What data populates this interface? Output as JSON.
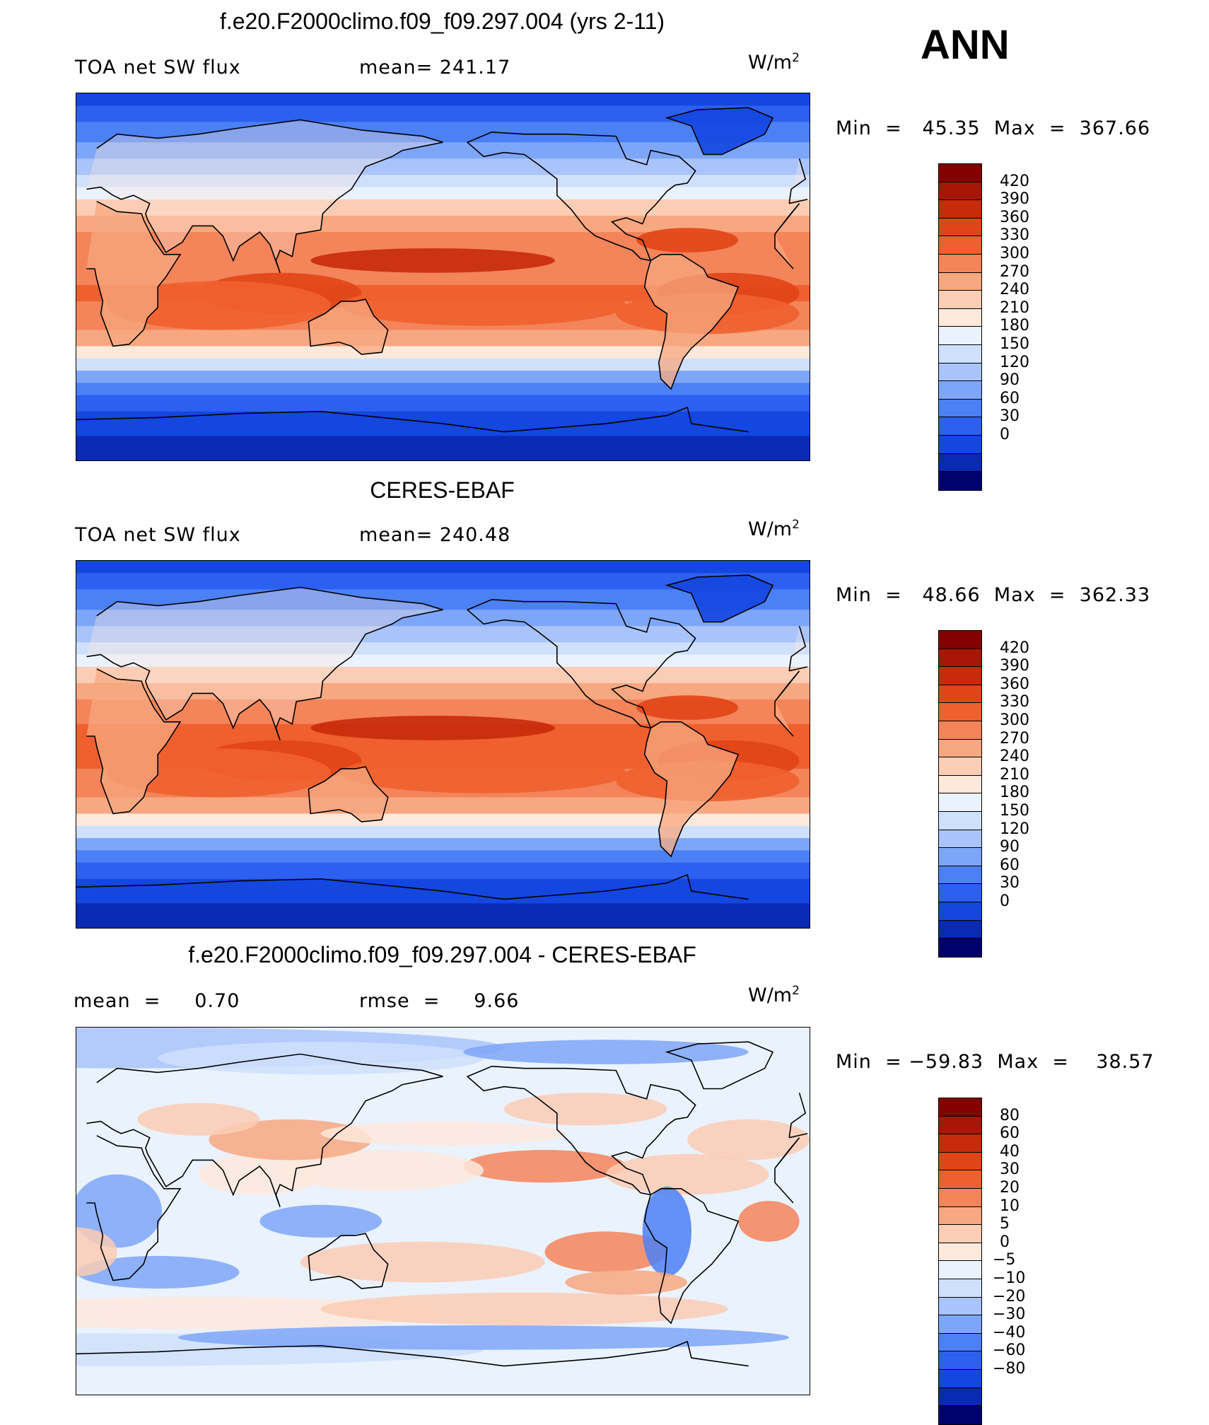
{
  "header": {
    "season": "ANN"
  },
  "colors": {
    "abs_scale": [
      "#00006b",
      "#0a2ab4",
      "#1446e0",
      "#2d60f0",
      "#4c80f5",
      "#7ea6f8",
      "#a9c4fa",
      "#cfe0fc",
      "#eaf2fe",
      "#fde9dc",
      "#fbcdb4",
      "#f7a880",
      "#f4845a",
      "#f0602f",
      "#e14416",
      "#c82a0a",
      "#a81606",
      "#820000"
    ],
    "diff_scale": [
      "#00006b",
      "#0a2ab4",
      "#1446e0",
      "#2d60f0",
      "#4c80f5",
      "#7ea6f8",
      "#a9c4fa",
      "#cfe0fc",
      "#eaf2fe",
      "#fde9dc",
      "#fbcdb4",
      "#f7a880",
      "#f4845a",
      "#f0602f",
      "#e14416",
      "#c82a0a",
      "#a81606",
      "#820000"
    ]
  },
  "panels": [
    {
      "title": "f.e20.F2000climo.f09_f09.297.004 (yrs 2-11)",
      "left_label": "TOA net SW flux",
      "stat_label": "mean= 241.17",
      "units_base": "W/m",
      "units_exp": "2",
      "minmax": "Min  =   45.35  Max  =  367.66",
      "colorbar_ticks": [
        "420",
        "390",
        "360",
        "330",
        "300",
        "270",
        "240",
        "210",
        "180",
        "150",
        "120",
        "90",
        "60",
        "30",
        "0"
      ],
      "map_kind": "model"
    },
    {
      "title": "CERES-EBAF",
      "left_label": "TOA net SW flux",
      "stat_label": "mean= 240.48",
      "units_base": "W/m",
      "units_exp": "2",
      "minmax": "Min  =   48.66  Max  =  362.33",
      "colorbar_ticks": [
        "420",
        "390",
        "360",
        "330",
        "300",
        "270",
        "240",
        "210",
        "180",
        "150",
        "120",
        "90",
        "60",
        "30",
        "0"
      ],
      "map_kind": "obs"
    },
    {
      "title": "f.e20.F2000climo.f09_f09.297.004 - CERES-EBAF",
      "left_label": "mean  =     0.70",
      "stat_label": "rmse  =     9.66",
      "units_base": "W/m",
      "units_exp": "2",
      "minmax": "Min  = −59.83  Max  =    38.57",
      "colorbar_ticks": [
        "80",
        "60",
        "40",
        "30",
        "20",
        "10",
        "5",
        "0",
        "−5",
        "−10",
        "−20",
        "−30",
        "−40",
        "−60",
        "−80"
      ],
      "map_kind": "diff"
    }
  ]
}
